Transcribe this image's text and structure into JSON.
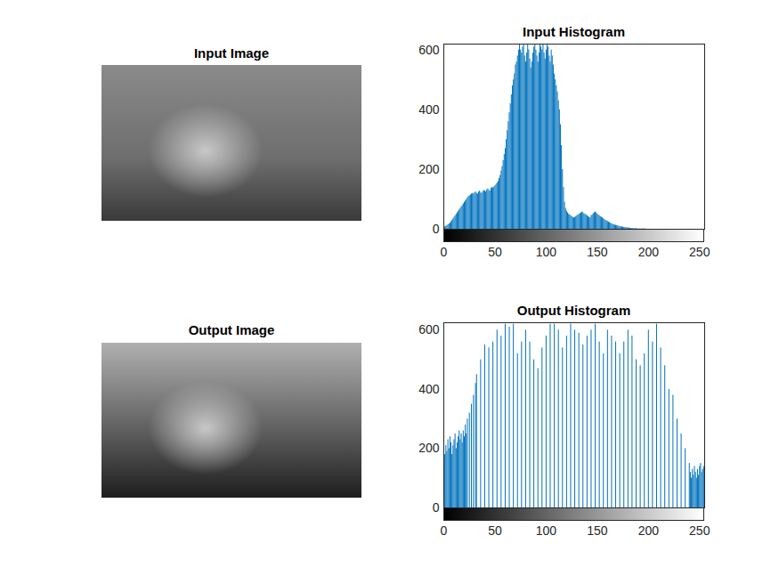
{
  "chart_data": [
    {
      "type": "image",
      "title": "Input Image"
    },
    {
      "type": "stem",
      "title": "Input Histogram",
      "color": "#0072bd",
      "xlim": [
        0,
        255
      ],
      "xticks": [
        0,
        50,
        100,
        150,
        200,
        250
      ],
      "ylim": [
        0,
        620
      ],
      "yticks": [
        0,
        200,
        400,
        600
      ],
      "x": [
        0,
        1,
        2,
        3,
        4,
        5,
        6,
        7,
        8,
        9,
        10,
        11,
        12,
        13,
        14,
        15,
        16,
        17,
        18,
        19,
        20,
        21,
        22,
        23,
        24,
        25,
        26,
        27,
        28,
        29,
        30,
        31,
        32,
        33,
        34,
        35,
        36,
        37,
        38,
        39,
        40,
        41,
        42,
        43,
        44,
        45,
        46,
        47,
        48,
        49,
        50,
        51,
        52,
        53,
        54,
        55,
        56,
        57,
        58,
        59,
        60,
        61,
        62,
        63,
        64,
        65,
        66,
        67,
        68,
        69,
        70,
        71,
        72,
        73,
        74,
        75,
        76,
        77,
        78,
        79,
        80,
        81,
        82,
        83,
        84,
        85,
        86,
        87,
        88,
        89,
        90,
        91,
        92,
        93,
        94,
        95,
        96,
        97,
        98,
        99,
        100,
        101,
        102,
        103,
        104,
        105,
        106,
        107,
        108,
        109,
        110,
        111,
        112,
        113,
        114,
        115,
        116,
        117,
        118,
        119,
        120,
        121,
        122,
        123,
        124,
        125,
        126,
        127,
        128,
        129,
        130,
        131,
        132,
        133,
        134,
        135,
        136,
        137,
        138,
        139,
        140,
        141,
        142,
        143,
        144,
        145,
        146,
        147,
        148,
        149,
        150,
        151,
        152,
        153,
        154,
        155,
        156,
        157,
        158,
        159,
        160,
        161,
        162,
        163,
        164,
        165,
        166,
        167,
        168,
        169,
        170,
        171,
        172,
        173,
        174,
        175,
        176,
        177,
        178,
        179,
        180,
        181,
        182,
        183,
        184,
        185,
        186,
        187,
        188,
        189,
        190,
        191,
        192,
        193,
        194,
        195,
        196,
        197,
        198,
        199,
        200,
        201,
        202,
        203,
        204,
        205,
        206,
        207,
        208,
        209,
        210,
        211,
        212,
        213,
        214,
        215,
        216,
        217,
        218,
        219,
        220,
        221,
        222,
        223,
        224,
        225,
        226,
        227,
        228,
        229,
        230,
        231,
        232,
        233,
        234,
        235,
        236,
        237,
        238,
        239,
        240,
        241,
        242,
        243,
        244,
        245,
        246,
        247,
        248,
        249,
        250,
        251,
        252,
        253,
        254,
        255
      ],
      "values": [
        5,
        8,
        10,
        12,
        15,
        18,
        20,
        25,
        30,
        35,
        40,
        45,
        50,
        55,
        60,
        65,
        70,
        75,
        80,
        85,
        90,
        95,
        100,
        105,
        110,
        112,
        115,
        118,
        120,
        118,
        122,
        125,
        120,
        118,
        125,
        128,
        122,
        120,
        126,
        130,
        128,
        125,
        132,
        135,
        130,
        128,
        136,
        140,
        138,
        142,
        145,
        150,
        155,
        160,
        170,
        180,
        195,
        210,
        230,
        250,
        270,
        300,
        330,
        360,
        390,
        420,
        450,
        480,
        500,
        520,
        550,
        560,
        580,
        600,
        620,
        600,
        590,
        610,
        620,
        580,
        560,
        590,
        620,
        600,
        570,
        540,
        560,
        590,
        610,
        620,
        600,
        580,
        560,
        590,
        620,
        610,
        600,
        620,
        590,
        570,
        600,
        620,
        610,
        580,
        560,
        600,
        580,
        550,
        520,
        500,
        480,
        460,
        430,
        400,
        350,
        280,
        200,
        140,
        90,
        70,
        60,
        55,
        50,
        48,
        45,
        42,
        40,
        38,
        40,
        42,
        45,
        48,
        50,
        52,
        55,
        58,
        55,
        52,
        50,
        48,
        45,
        42,
        40,
        38,
        45,
        48,
        52,
        55,
        58,
        55,
        50,
        48,
        45,
        42,
        40,
        38,
        35,
        32,
        30,
        28,
        26,
        24,
        22,
        20,
        18,
        16,
        15,
        14,
        13,
        12,
        11,
        10,
        9,
        8,
        8,
        7,
        6,
        6,
        5,
        5,
        4,
        4,
        3,
        3,
        3,
        2,
        2,
        2,
        2,
        1,
        1,
        1,
        1,
        1,
        1,
        1,
        1,
        1,
        0,
        0,
        0,
        0,
        0,
        0,
        0,
        0,
        0,
        0,
        0,
        0,
        0,
        0,
        0,
        0,
        0,
        0,
        0,
        0,
        0,
        0,
        0,
        0,
        0,
        0,
        0,
        0,
        0,
        0,
        0,
        0,
        0,
        0,
        0,
        0,
        0,
        0,
        0,
        0,
        0,
        0,
        0,
        0,
        0,
        0,
        0,
        0,
        0,
        0,
        0,
        0,
        0,
        0,
        0,
        0,
        0,
        0
      ]
    },
    {
      "type": "image",
      "title": "Output Image"
    },
    {
      "type": "stem",
      "title": "Output Histogram",
      "color": "#0072bd",
      "xlim": [
        0,
        255
      ],
      "xticks": [
        0,
        50,
        100,
        150,
        200,
        250
      ],
      "ylim": [
        0,
        625
      ],
      "yticks": [
        0,
        200,
        400,
        600
      ],
      "x": [
        0,
        1,
        2,
        3,
        4,
        5,
        6,
        7,
        8,
        9,
        10,
        11,
        12,
        13,
        14,
        15,
        16,
        17,
        18,
        19,
        20,
        21,
        22,
        23,
        24,
        25,
        26,
        27,
        28,
        29,
        30,
        31,
        32,
        33,
        34,
        35,
        36,
        37,
        38,
        39,
        40,
        41,
        42,
        43,
        44,
        45,
        46,
        47,
        48,
        49,
        50,
        51,
        52,
        53,
        54,
        55,
        56,
        57,
        58,
        59,
        60,
        61,
        62,
        63,
        64,
        65,
        66,
        67,
        68,
        69,
        70,
        71,
        72,
        73,
        74,
        75,
        76,
        77,
        78,
        79,
        80,
        81,
        82,
        83,
        84,
        85,
        86,
        87,
        88,
        89,
        90,
        91,
        92,
        93,
        94,
        95,
        96,
        97,
        98,
        99,
        100,
        101,
        102,
        103,
        104,
        105,
        106,
        107,
        108,
        109,
        110,
        111,
        112,
        113,
        114,
        115,
        116,
        117,
        118,
        119,
        120,
        121,
        122,
        123,
        124,
        125,
        126,
        127,
        128,
        129,
        130,
        131,
        132,
        133,
        134,
        135,
        136,
        137,
        138,
        139,
        140,
        141,
        142,
        143,
        144,
        145,
        146,
        147,
        148,
        149,
        150,
        151,
        152,
        153,
        154,
        155,
        156,
        157,
        158,
        159,
        160,
        161,
        162,
        163,
        164,
        165,
        166,
        167,
        168,
        169,
        170,
        171,
        172,
        173,
        174,
        175,
        176,
        177,
        178,
        179,
        180,
        181,
        182,
        183,
        184,
        185,
        186,
        187,
        188,
        189,
        190,
        191,
        192,
        193,
        194,
        195,
        196,
        197,
        198,
        199,
        200,
        201,
        202,
        203,
        204,
        205,
        206,
        207,
        208,
        209,
        210,
        211,
        212,
        213,
        214,
        215,
        216,
        217,
        218,
        219,
        220,
        221,
        222,
        223,
        224,
        225,
        226,
        227,
        228,
        229,
        230,
        231,
        232,
        233,
        234,
        235,
        236,
        237,
        238,
        239,
        240,
        241,
        242,
        243,
        244,
        245,
        246,
        247,
        248,
        249,
        250,
        251,
        252,
        253,
        254,
        255
      ],
      "values": [
        150,
        180,
        210,
        190,
        230,
        200,
        240,
        220,
        180,
        210,
        230,
        250,
        200,
        220,
        240,
        260,
        230,
        250,
        220,
        260,
        240,
        280,
        250,
        300,
        0,
        320,
        0,
        350,
        0,
        380,
        0,
        420,
        450,
        0,
        0,
        0,
        500,
        0,
        0,
        0,
        550,
        0,
        0,
        0,
        540,
        0,
        0,
        0,
        560,
        0,
        0,
        0,
        600,
        0,
        0,
        0,
        580,
        0,
        0,
        0,
        620,
        0,
        0,
        0,
        610,
        0,
        0,
        0,
        620,
        0,
        0,
        0,
        520,
        0,
        0,
        0,
        560,
        0,
        0,
        0,
        600,
        0,
        0,
        0,
        560,
        0,
        0,
        0,
        500,
        0,
        0,
        0,
        470,
        0,
        0,
        0,
        540,
        0,
        0,
        0,
        580,
        0,
        0,
        0,
        620,
        0,
        0,
        0,
        620,
        0,
        0,
        0,
        600,
        0,
        0,
        0,
        540,
        0,
        0,
        0,
        580,
        0,
        0,
        0,
        620,
        0,
        0,
        0,
        600,
        0,
        0,
        0,
        590,
        0,
        0,
        0,
        550,
        0,
        0,
        0,
        580,
        0,
        0,
        0,
        600,
        0,
        0,
        0,
        620,
        0,
        0,
        0,
        560,
        0,
        0,
        0,
        520,
        0,
        0,
        0,
        600,
        0,
        0,
        0,
        580,
        0,
        0,
        0,
        560,
        0,
        0,
        0,
        520,
        0,
        0,
        0,
        560,
        0,
        0,
        0,
        600,
        0,
        0,
        0,
        580,
        0,
        0,
        0,
        500,
        0,
        0,
        0,
        480,
        0,
        0,
        0,
        520,
        0,
        0,
        0,
        600,
        0,
        0,
        0,
        560,
        0,
        0,
        0,
        620,
        0,
        0,
        0,
        540,
        0,
        0,
        0,
        480,
        0,
        0,
        0,
        400,
        0,
        0,
        0,
        380,
        0,
        0,
        0,
        300,
        0,
        0,
        0,
        250,
        0,
        0,
        0,
        200,
        0,
        0,
        0,
        150,
        120,
        100,
        130,
        110,
        140,
        120,
        100,
        130,
        110,
        140,
        150,
        120,
        130,
        140,
        620
      ]
    }
  ]
}
